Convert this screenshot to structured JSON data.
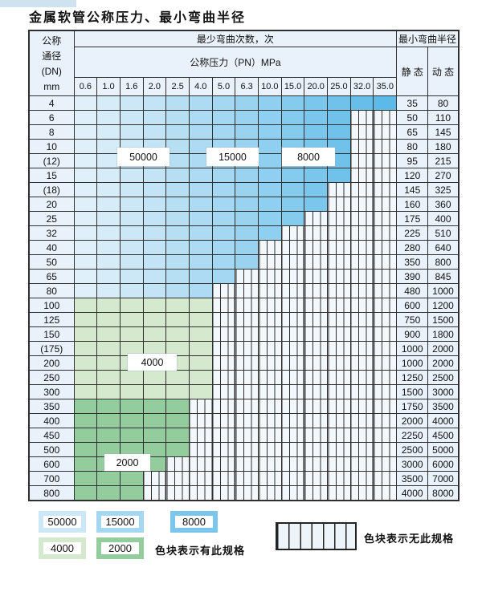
{
  "title": "金属软管公称压力、最小弯曲半径",
  "colors": {
    "blue_start": "#e0f0fa",
    "blue_end": "#5cbae8",
    "green_light": "#d5e9cf",
    "green_mid": "#94cd9d",
    "base_cell": "#e9f2fa",
    "grid_line": "#2f2f2f",
    "nospec_bg": "#f2f8fc",
    "top_strip": "#cfe2f0",
    "swatch_50000": "#cce8f7",
    "swatch_15000": "#a3d7f2",
    "swatch_8000": "#7ac6ec",
    "swatch_4000": "#d5e9cf",
    "swatch_2000": "#94cd9d"
  },
  "chart_data": {
    "type": "table",
    "title": "金属软管公称压力、最小弯曲半径",
    "header": {
      "dn_lines": [
        "公称",
        "通径",
        "(DN)",
        "mm"
      ],
      "cycles_label": "最少弯曲次数，次",
      "radius_label": "最小弯曲半径",
      "pressure_label": "公称压力（PN）MPa",
      "pressure_cols": [
        "0.6",
        "1.0",
        "1.6",
        "2.0",
        "2.5",
        "4.0",
        "5.0",
        "6.3",
        "10.0",
        "15.0",
        "20.0",
        "25.0",
        "32.0",
        "35.0"
      ],
      "static_label": "静 态",
      "dynamic_label": "动 态"
    },
    "overlay_tags": [
      "50000",
      "15000",
      "8000",
      "4000",
      "2000"
    ],
    "rows": [
      {
        "dn": "4",
        "max_pn": "35.0",
        "until": 13,
        "shade": "blue",
        "static": "35",
        "dynamic": "80"
      },
      {
        "dn": "6",
        "max_pn": "25.0",
        "until": 11,
        "shade": "blue",
        "static": "50",
        "dynamic": "110"
      },
      {
        "dn": "8",
        "max_pn": "25.0",
        "until": 11,
        "shade": "blue",
        "static": "65",
        "dynamic": "145"
      },
      {
        "dn": "10",
        "max_pn": "25.0",
        "until": 11,
        "shade": "blue",
        "static": "80",
        "dynamic": "180"
      },
      {
        "dn": "(12)",
        "max_pn": "25.0",
        "until": 11,
        "shade": "blue",
        "static": "95",
        "dynamic": "215"
      },
      {
        "dn": "15",
        "max_pn": "25.0",
        "until": 11,
        "shade": "blue",
        "static": "120",
        "dynamic": "270"
      },
      {
        "dn": "(18)",
        "max_pn": "20.0",
        "until": 10,
        "shade": "blue",
        "static": "145",
        "dynamic": "325"
      },
      {
        "dn": "20",
        "max_pn": "20.0",
        "until": 10,
        "shade": "blue",
        "static": "160",
        "dynamic": "360"
      },
      {
        "dn": "25",
        "max_pn": "15.0",
        "until": 9,
        "shade": "blue",
        "static": "175",
        "dynamic": "400"
      },
      {
        "dn": "32",
        "max_pn": "10.0",
        "until": 8,
        "shade": "blue",
        "static": "225",
        "dynamic": "510"
      },
      {
        "dn": "40",
        "max_pn": "6.3",
        "until": 7,
        "shade": "blue",
        "static": "280",
        "dynamic": "640"
      },
      {
        "dn": "50",
        "max_pn": "6.3",
        "until": 7,
        "shade": "blue",
        "static": "350",
        "dynamic": "800"
      },
      {
        "dn": "65",
        "max_pn": "5.0",
        "until": 6,
        "shade": "blue",
        "static": "390",
        "dynamic": "845"
      },
      {
        "dn": "80",
        "max_pn": "4.0",
        "until": 5,
        "shade": "blue",
        "static": "480",
        "dynamic": "1000"
      },
      {
        "dn": "100",
        "max_pn": "4.0",
        "until": 5,
        "shade": "green_light",
        "static": "600",
        "dynamic": "1200"
      },
      {
        "dn": "125",
        "max_pn": "4.0",
        "until": 5,
        "shade": "green_light",
        "static": "750",
        "dynamic": "1500"
      },
      {
        "dn": "150",
        "max_pn": "4.0",
        "until": 5,
        "shade": "green_light",
        "static": "900",
        "dynamic": "1800"
      },
      {
        "dn": "(175)",
        "max_pn": "4.0",
        "until": 5,
        "shade": "green_light",
        "static": "1000",
        "dynamic": "2000"
      },
      {
        "dn": "200",
        "max_pn": "4.0",
        "until": 5,
        "shade": "green_light",
        "static": "1000",
        "dynamic": "2000"
      },
      {
        "dn": "250",
        "max_pn": "4.0",
        "until": 5,
        "shade": "green_light",
        "static": "1250",
        "dynamic": "2500"
      },
      {
        "dn": "300",
        "max_pn": "4.0",
        "until": 5,
        "shade": "green_light",
        "static": "1500",
        "dynamic": "3000"
      },
      {
        "dn": "350",
        "max_pn": "2.5",
        "until": 4,
        "shade": "green_mid",
        "static": "1750",
        "dynamic": "3500"
      },
      {
        "dn": "400",
        "max_pn": "2.5",
        "until": 4,
        "shade": "green_mid",
        "static": "2000",
        "dynamic": "4000"
      },
      {
        "dn": "450",
        "max_pn": "2.5",
        "until": 4,
        "shade": "green_mid",
        "static": "2250",
        "dynamic": "4500"
      },
      {
        "dn": "500",
        "max_pn": "2.5",
        "until": 4,
        "shade": "green_mid",
        "static": "2500",
        "dynamic": "5000"
      },
      {
        "dn": "600",
        "max_pn": "2.0",
        "until": 3,
        "shade": "green_mid",
        "static": "3000",
        "dynamic": "6000"
      },
      {
        "dn": "700",
        "max_pn": "1.6",
        "until": 2,
        "shade": "green_mid",
        "static": "3500",
        "dynamic": "7000"
      },
      {
        "dn": "800",
        "max_pn": "1.6",
        "until": 2,
        "shade": "green_mid",
        "static": "4000",
        "dynamic": "8000"
      }
    ]
  },
  "legend": {
    "swatches": [
      {
        "label": "50000",
        "color_key": "swatch_50000"
      },
      {
        "label": "15000",
        "color_key": "swatch_15000"
      },
      {
        "label": "8000",
        "color_key": "swatch_8000"
      },
      {
        "label": "4000",
        "color_key": "swatch_4000"
      },
      {
        "label": "2000",
        "color_key": "swatch_2000"
      }
    ],
    "has_spec_text": "色块表示有此规格",
    "no_spec_text": "色块表示无此规格"
  }
}
